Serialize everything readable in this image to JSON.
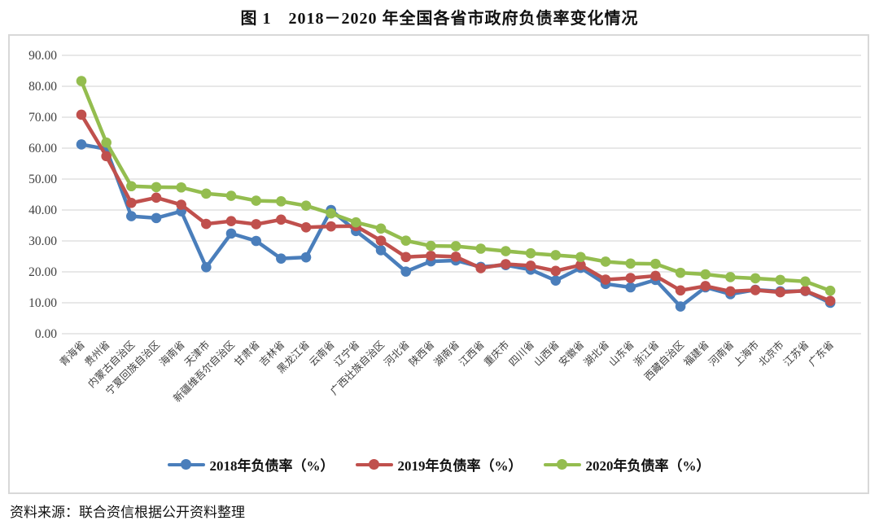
{
  "title": "图 1　2018－2020 年全国各省市政府负债率变化情况",
  "source_note": "资料来源：联合资信根据公开资料整理",
  "axis_text_color": "#3f3f3f",
  "grid_color": "#d9d9d9",
  "chart_data": {
    "type": "line",
    "title": "图 1　2018－2020 年全国各省市政府负债率变化情况",
    "xlabel": "",
    "ylabel": "",
    "ylim": [
      0,
      90
    ],
    "ytick_step": 10,
    "ytick_decimals": 2,
    "grid": true,
    "legend_position": "bottom",
    "marker": "circle",
    "categories": [
      "青海省",
      "贵州省",
      "内蒙古自治区",
      "宁夏回族自治区",
      "海南省",
      "天津市",
      "新疆维吾尔自治区",
      "甘肃省",
      "吉林省",
      "黑龙江省",
      "云南省",
      "辽宁省",
      "广西壮族自治区",
      "河北省",
      "陕西省",
      "湖南省",
      "江西省",
      "重庆市",
      "四川省",
      "山西省",
      "安徽省",
      "湖北省",
      "山东省",
      "浙江省",
      "西藏自治区",
      "福建省",
      "河南省",
      "上海市",
      "北京市",
      "江苏省",
      "广东省"
    ],
    "series": [
      {
        "name": "2018年负债率（%）",
        "color": "#4a7ebb",
        "values": [
          61.2,
          59.7,
          38.0,
          37.4,
          39.6,
          21.5,
          32.4,
          30.0,
          24.3,
          24.7,
          40.0,
          33.2,
          27.0,
          20.1,
          23.4,
          23.7,
          21.6,
          22.2,
          20.7,
          17.2,
          21.3,
          16.1,
          15.0,
          17.4,
          8.8,
          15.0,
          12.8,
          14.2,
          13.7,
          13.8,
          10.0
        ]
      },
      {
        "name": "2019年负债率（%）",
        "color": "#c0504d",
        "values": [
          70.8,
          57.4,
          42.3,
          44.0,
          41.7,
          35.5,
          36.4,
          35.4,
          36.9,
          34.4,
          34.7,
          34.8,
          30.1,
          24.8,
          25.2,
          24.9,
          21.2,
          22.5,
          22.0,
          20.3,
          22.2,
          17.5,
          18.0,
          18.7,
          14.0,
          15.4,
          13.7,
          14.1,
          13.4,
          13.9,
          10.6
        ]
      },
      {
        "name": "2020年负债率（%）",
        "color": "#94bd4f",
        "values": [
          81.7,
          61.8,
          47.7,
          47.4,
          47.3,
          45.3,
          44.6,
          43.0,
          42.8,
          41.4,
          38.9,
          36.0,
          34.0,
          30.1,
          28.4,
          28.3,
          27.5,
          26.7,
          26.0,
          25.4,
          24.8,
          23.3,
          22.7,
          22.6,
          19.7,
          19.2,
          18.3,
          17.9,
          17.4,
          16.9,
          13.9
        ]
      }
    ]
  }
}
